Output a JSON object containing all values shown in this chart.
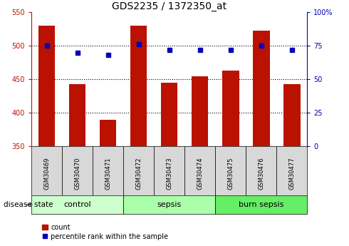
{
  "title": "GDS2235 / 1372350_at",
  "samples": [
    "GSM30469",
    "GSM30470",
    "GSM30471",
    "GSM30472",
    "GSM30473",
    "GSM30474",
    "GSM30475",
    "GSM30476",
    "GSM30477"
  ],
  "counts": [
    530,
    443,
    390,
    530,
    445,
    455,
    463,
    523,
    443
  ],
  "percentiles": [
    75,
    70,
    68,
    76,
    72,
    72,
    72,
    75,
    72
  ],
  "bar_color": "#bb1100",
  "dot_color": "#0000bb",
  "left_ylim": [
    350,
    550
  ],
  "left_yticks": [
    350,
    400,
    450,
    500,
    550
  ],
  "right_ylim": [
    0,
    100
  ],
  "right_yticks": [
    0,
    25,
    50,
    75,
    100
  ],
  "right_yticklabels": [
    "0",
    "25",
    "50",
    "75",
    "100%"
  ],
  "groups": [
    {
      "label": "control",
      "indices": [
        0,
        1,
        2
      ],
      "color": "#ccffcc"
    },
    {
      "label": "sepsis",
      "indices": [
        3,
        4,
        5
      ],
      "color": "#aaffaa"
    },
    {
      "label": "burn sepsis",
      "indices": [
        6,
        7,
        8
      ],
      "color": "#66ee66"
    }
  ],
  "disease_state_label": "disease state",
  "legend_count_label": "count",
  "legend_percentile_label": "percentile rank within the sample",
  "sample_box_color": "#d8d8d8",
  "bg_color": "#ffffff"
}
